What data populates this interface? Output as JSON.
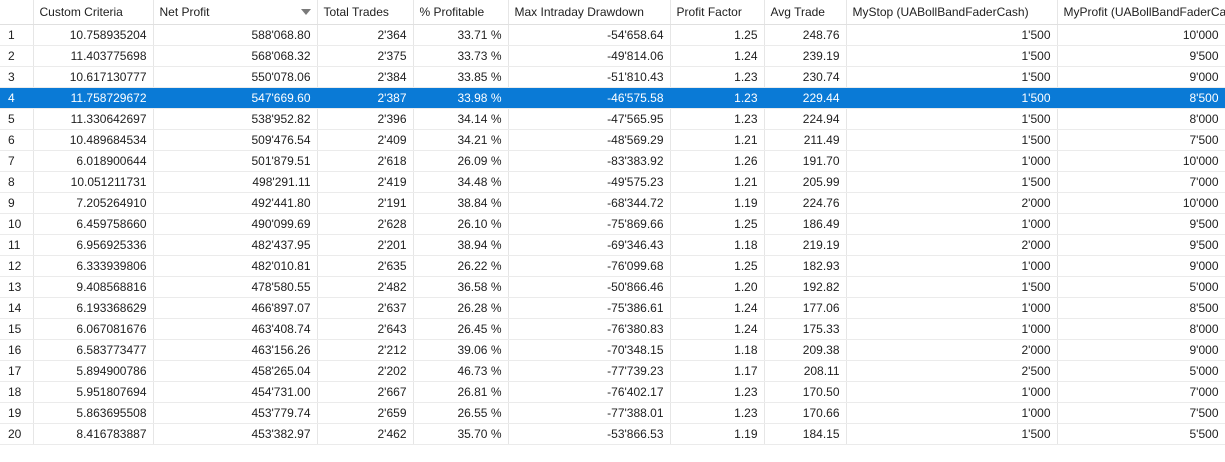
{
  "columns": [
    "",
    "Custom Criteria",
    "Net Profit",
    "Total Trades",
    "% Profitable",
    "Max Intraday Drawdown",
    "Profit Factor",
    "Avg Trade",
    "MyStop (UABollBandFaderCash)",
    "MyProfit (UABollBandFaderCash)"
  ],
  "sorted_column": "Net Profit",
  "sort_direction": "descending",
  "selected_row_index": 3,
  "colors": {
    "selected_bg": "#0a7ad6",
    "selected_text": "#ffffff"
  },
  "rows": [
    [
      "1",
      "10.758935204",
      "588'068.80",
      "2'364",
      "33.71 %",
      "-54'658.64",
      "1.25",
      "248.76",
      "1'500",
      "10'000"
    ],
    [
      "2",
      "11.403775698",
      "568'068.32",
      "2'375",
      "33.73 %",
      "-49'814.06",
      "1.24",
      "239.19",
      "1'500",
      "9'500"
    ],
    [
      "3",
      "10.617130777",
      "550'078.06",
      "2'384",
      "33.85 %",
      "-51'810.43",
      "1.23",
      "230.74",
      "1'500",
      "9'000"
    ],
    [
      "4",
      "11.758729672",
      "547'669.60",
      "2'387",
      "33.98 %",
      "-46'575.58",
      "1.23",
      "229.44",
      "1'500",
      "8'500"
    ],
    [
      "5",
      "11.330642697",
      "538'952.82",
      "2'396",
      "34.14 %",
      "-47'565.95",
      "1.23",
      "224.94",
      "1'500",
      "8'000"
    ],
    [
      "6",
      "10.489684534",
      "509'476.54",
      "2'409",
      "34.21 %",
      "-48'569.29",
      "1.21",
      "211.49",
      "1'500",
      "7'500"
    ],
    [
      "7",
      "6.018900644",
      "501'879.51",
      "2'618",
      "26.09 %",
      "-83'383.92",
      "1.26",
      "191.70",
      "1'000",
      "10'000"
    ],
    [
      "8",
      "10.051211731",
      "498'291.11",
      "2'419",
      "34.48 %",
      "-49'575.23",
      "1.21",
      "205.99",
      "1'500",
      "7'000"
    ],
    [
      "9",
      "7.205264910",
      "492'441.80",
      "2'191",
      "38.84 %",
      "-68'344.72",
      "1.19",
      "224.76",
      "2'000",
      "10'000"
    ],
    [
      "10",
      "6.459758660",
      "490'099.69",
      "2'628",
      "26.10 %",
      "-75'869.66",
      "1.25",
      "186.49",
      "1'000",
      "9'500"
    ],
    [
      "11",
      "6.956925336",
      "482'437.95",
      "2'201",
      "38.94 %",
      "-69'346.43",
      "1.18",
      "219.19",
      "2'000",
      "9'500"
    ],
    [
      "12",
      "6.333939806",
      "482'010.81",
      "2'635",
      "26.22 %",
      "-76'099.68",
      "1.25",
      "182.93",
      "1'000",
      "9'000"
    ],
    [
      "13",
      "9.408568816",
      "478'580.55",
      "2'482",
      "36.58 %",
      "-50'866.46",
      "1.20",
      "192.82",
      "1'500",
      "5'000"
    ],
    [
      "14",
      "6.193368629",
      "466'897.07",
      "2'637",
      "26.28 %",
      "-75'386.61",
      "1.24",
      "177.06",
      "1'000",
      "8'500"
    ],
    [
      "15",
      "6.067081676",
      "463'408.74",
      "2'643",
      "26.45 %",
      "-76'380.83",
      "1.24",
      "175.33",
      "1'000",
      "8'000"
    ],
    [
      "16",
      "6.583773477",
      "463'156.26",
      "2'212",
      "39.06 %",
      "-70'348.15",
      "1.18",
      "209.38",
      "2'000",
      "9'000"
    ],
    [
      "17",
      "5.894900786",
      "458'265.04",
      "2'202",
      "46.73 %",
      "-77'739.23",
      "1.17",
      "208.11",
      "2'500",
      "5'000"
    ],
    [
      "18",
      "5.951807694",
      "454'731.00",
      "2'667",
      "26.81 %",
      "-76'402.17",
      "1.23",
      "170.50",
      "1'000",
      "7'000"
    ],
    [
      "19",
      "5.863695508",
      "453'779.74",
      "2'659",
      "26.55 %",
      "-77'388.01",
      "1.23",
      "170.66",
      "1'000",
      "7'500"
    ],
    [
      "20",
      "8.416783887",
      "453'382.97",
      "2'462",
      "35.70 %",
      "-53'866.53",
      "1.19",
      "184.15",
      "1'500",
      "5'500"
    ]
  ]
}
